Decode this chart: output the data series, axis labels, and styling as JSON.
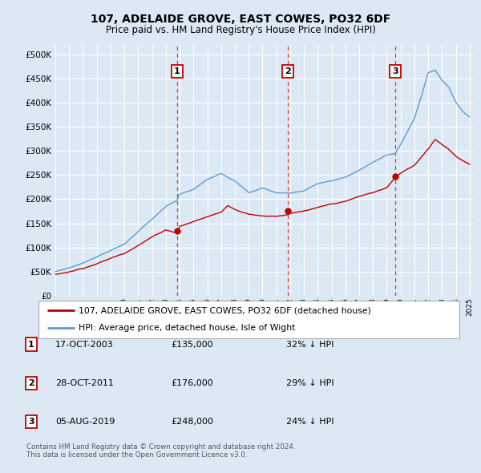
{
  "title": "107, ADELAIDE GROVE, EAST COWES, PO32 6DF",
  "subtitle": "Price paid vs. HM Land Registry's House Price Index (HPI)",
  "background_color": "#dce9f5",
  "plot_bg_color": "#dce9f5",
  "grid_color": "#ffffff",
  "ylim": [
    0,
    520000
  ],
  "yticks": [
    0,
    50000,
    100000,
    150000,
    200000,
    250000,
    300000,
    350000,
    400000,
    450000,
    500000
  ],
  "ytick_labels": [
    "£0",
    "£50K",
    "£100K",
    "£150K",
    "£200K",
    "£250K",
    "£300K",
    "£350K",
    "£400K",
    "£450K",
    "£500K"
  ],
  "hpi_color": "#5b9bd5",
  "price_color": "#c00000",
  "vline_color": "#ee3333",
  "transactions": [
    {
      "label": "1",
      "date_num": 2003.8,
      "price": 135000
    },
    {
      "label": "2",
      "date_num": 2011.83,
      "price": 176000
    },
    {
      "label": "3",
      "date_num": 2019.59,
      "price": 248000
    }
  ],
  "legend_line1": "107, ADELAIDE GROVE, EAST COWES, PO32 6DF (detached house)",
  "legend_line2": "HPI: Average price, detached house, Isle of Wight",
  "table_rows": [
    {
      "num": "1",
      "date": "17-OCT-2003",
      "price": "£135,000",
      "pct": "32% ↓ HPI"
    },
    {
      "num": "2",
      "date": "28-OCT-2011",
      "price": "£176,000",
      "pct": "29% ↓ HPI"
    },
    {
      "num": "3",
      "date": "05-AUG-2019",
      "price": "£248,000",
      "pct": "24% ↓ HPI"
    }
  ],
  "footnote1": "Contains HM Land Registry data © Crown copyright and database right 2024.",
  "footnote2": "This data is licensed under the Open Government Licence v3.0."
}
